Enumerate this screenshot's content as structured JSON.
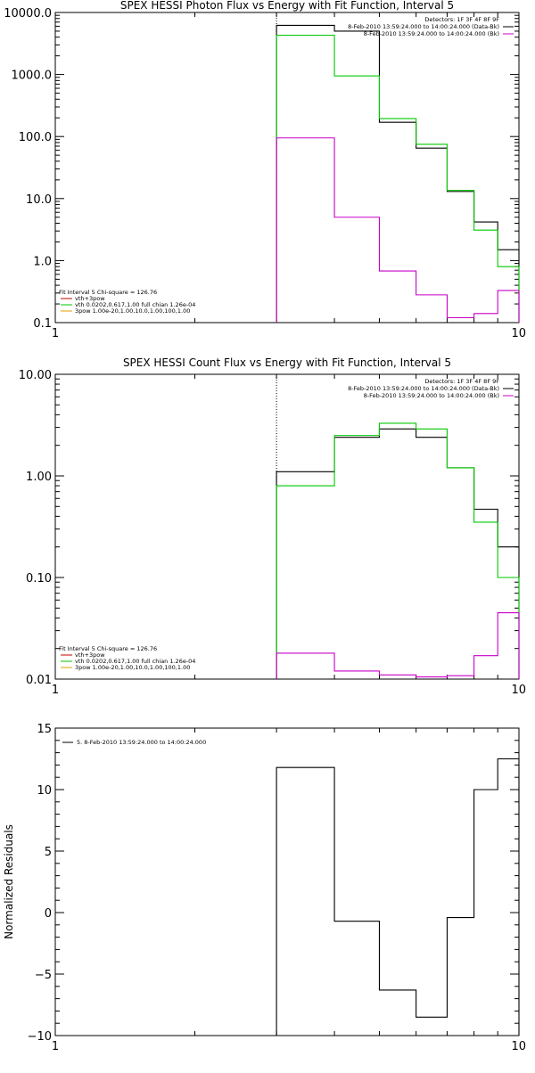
{
  "colors": {
    "black": "#000000",
    "green": "#00c800",
    "magenta": "#c800c8",
    "orange": "#e0a000",
    "red": "#c80000",
    "background": "#ffffff"
  },
  "chart_data": [
    {
      "type": "line",
      "title": "SPEX HESSI Photon Flux vs Energy with Fit Function, Interval 5",
      "xscale": "log",
      "yscale": "log",
      "xlim": [
        1,
        10
      ],
      "ylim": [
        0.1,
        10000
      ],
      "xticks": [
        {
          "v": 1,
          "label": "1"
        },
        {
          "v": 10,
          "label": "10"
        }
      ],
      "yticks": [
        {
          "v": 0.1,
          "label": "0.1"
        },
        {
          "v": 1,
          "label": "1.0"
        },
        {
          "v": 10,
          "label": "10.0"
        },
        {
          "v": 100,
          "label": "100.0"
        },
        {
          "v": 1000,
          "label": "1000.0"
        },
        {
          "v": 10000,
          "label": "10000.0"
        }
      ],
      "ylabel": "",
      "vline_x": 3.0,
      "legend_right": [
        "Detectors: 1F 3F 4F 8F 9F",
        "8-Feb-2010 13:59:24.000 to 14:00:24.000 (Data-Bk)",
        "8-Feb-2010 13:59:24.000 to 14:00:24.000 (Bk)"
      ],
      "legend_left": [
        "Fit Interval 5   Chi-square = 126.76",
        "vth+3pow",
        "vth 0.0202,0.617,1.00  full chian 1.26e-04",
        "3pow 1.00e-20,1.00,10.0,1.00,100,1.00"
      ],
      "series": [
        {
          "name": "8-Feb-2010 13:59:24.000 to 14:00:24.000 (Data-Bk)",
          "color": "black",
          "edges": [
            3.0,
            4.0,
            5.0,
            6.0,
            7.0,
            8.0,
            9.0,
            10.0
          ],
          "values": [
            6200,
            5000,
            170,
            65,
            13,
            4.2,
            1.5
          ]
        },
        {
          "name": "vth+3pow",
          "color": "green",
          "edges": [
            3.0,
            4.0,
            5.0,
            6.0,
            7.0,
            8.0,
            9.0,
            10.0
          ],
          "values": [
            4300,
            950,
            195,
            75,
            13.5,
            3.1,
            0.8
          ]
        },
        {
          "name": "8-Feb-2010 13:59:24.000 to 14:00:24.000 (Bk)",
          "color": "magenta",
          "edges": [
            3.0,
            4.0,
            5.0,
            6.0,
            7.0,
            8.0,
            9.0,
            10.0
          ],
          "values": [
            95,
            5.0,
            0.68,
            0.28,
            0.12,
            0.14,
            0.33
          ]
        }
      ]
    },
    {
      "type": "line",
      "title": "SPEX HESSI Count Flux vs Energy with Fit Function, Interval 5",
      "xscale": "log",
      "yscale": "log",
      "xlim": [
        1,
        10
      ],
      "ylim": [
        0.01,
        10
      ],
      "xticks": [
        {
          "v": 1,
          "label": "1"
        },
        {
          "v": 10,
          "label": "10"
        }
      ],
      "yticks": [
        {
          "v": 0.01,
          "label": "0.01"
        },
        {
          "v": 0.1,
          "label": "0.10"
        },
        {
          "v": 1,
          "label": "1.00"
        },
        {
          "v": 10,
          "label": "10.00"
        }
      ],
      "ylabel": "",
      "vline_x": 3.0,
      "legend_right": [
        "Detectors: 1F 3F 4F 8F 9F",
        "8-Feb-2010 13:59:24.000 to 14:00:24.000 (Data-Bk)",
        "8-Feb-2010 13:59:24.000 to 14:00:24.000 (Bk)"
      ],
      "legend_left": [
        "Fit Interval 5   Chi-square = 126.76",
        "vth+3pow",
        "vth 0.0202,0.617,1.00  full chian 1.26e-04",
        "3pow 1.00e-20,1.00,10.0,1.00,100,1.00"
      ],
      "series": [
        {
          "name": "8-Feb-2010 13:59:24.000 to 14:00:24.000 (Data-Bk)",
          "color": "black",
          "edges": [
            3.0,
            4.0,
            5.0,
            6.0,
            7.0,
            8.0,
            9.0,
            10.0
          ],
          "values": [
            1.1,
            2.4,
            2.9,
            2.4,
            1.2,
            0.47,
            0.2
          ]
        },
        {
          "name": "vth+3pow",
          "color": "green",
          "edges": [
            3.0,
            4.0,
            5.0,
            6.0,
            7.0,
            8.0,
            9.0,
            10.0
          ],
          "values": [
            0.8,
            2.5,
            3.3,
            2.9,
            1.2,
            0.35,
            0.1
          ]
        },
        {
          "name": "8-Feb-2010 13:59:24.000 to 14:00:24.000 (Bk)",
          "color": "magenta",
          "edges": [
            3.0,
            4.0,
            5.0,
            6.0,
            7.0,
            8.0,
            9.0,
            10.0
          ],
          "values": [
            0.018,
            0.012,
            0.011,
            0.0105,
            0.0108,
            0.017,
            0.045
          ]
        }
      ]
    },
    {
      "type": "line",
      "title": "",
      "xscale": "log",
      "yscale": "linear",
      "xlim": [
        1,
        10
      ],
      "ylim": [
        -10,
        15
      ],
      "xticks": [
        {
          "v": 1,
          "label": "1"
        },
        {
          "v": 10,
          "label": "10"
        }
      ],
      "yticks": [
        {
          "v": -10,
          "label": "−10"
        },
        {
          "v": -5,
          "label": "−5"
        },
        {
          "v": 0,
          "label": "0"
        },
        {
          "v": 5,
          "label": "5"
        },
        {
          "v": 10,
          "label": "10"
        },
        {
          "v": 15,
          "label": "15"
        }
      ],
      "ylabel": "Normalized Residuals",
      "legend_top": [
        "5. 8-Feb-2010 13:59:24.000 to 14:00:24.000"
      ],
      "series": [
        {
          "name": "5. 8-Feb-2010 13:59:24.000 to 14:00:24.000",
          "color": "black",
          "edges": [
            3.0,
            4.0,
            5.0,
            6.0,
            7.0,
            8.0,
            9.0,
            10.0
          ],
          "values": [
            11.8,
            -0.7,
            -6.3,
            -8.5,
            -0.4,
            10.0,
            12.5
          ]
        }
      ]
    }
  ]
}
